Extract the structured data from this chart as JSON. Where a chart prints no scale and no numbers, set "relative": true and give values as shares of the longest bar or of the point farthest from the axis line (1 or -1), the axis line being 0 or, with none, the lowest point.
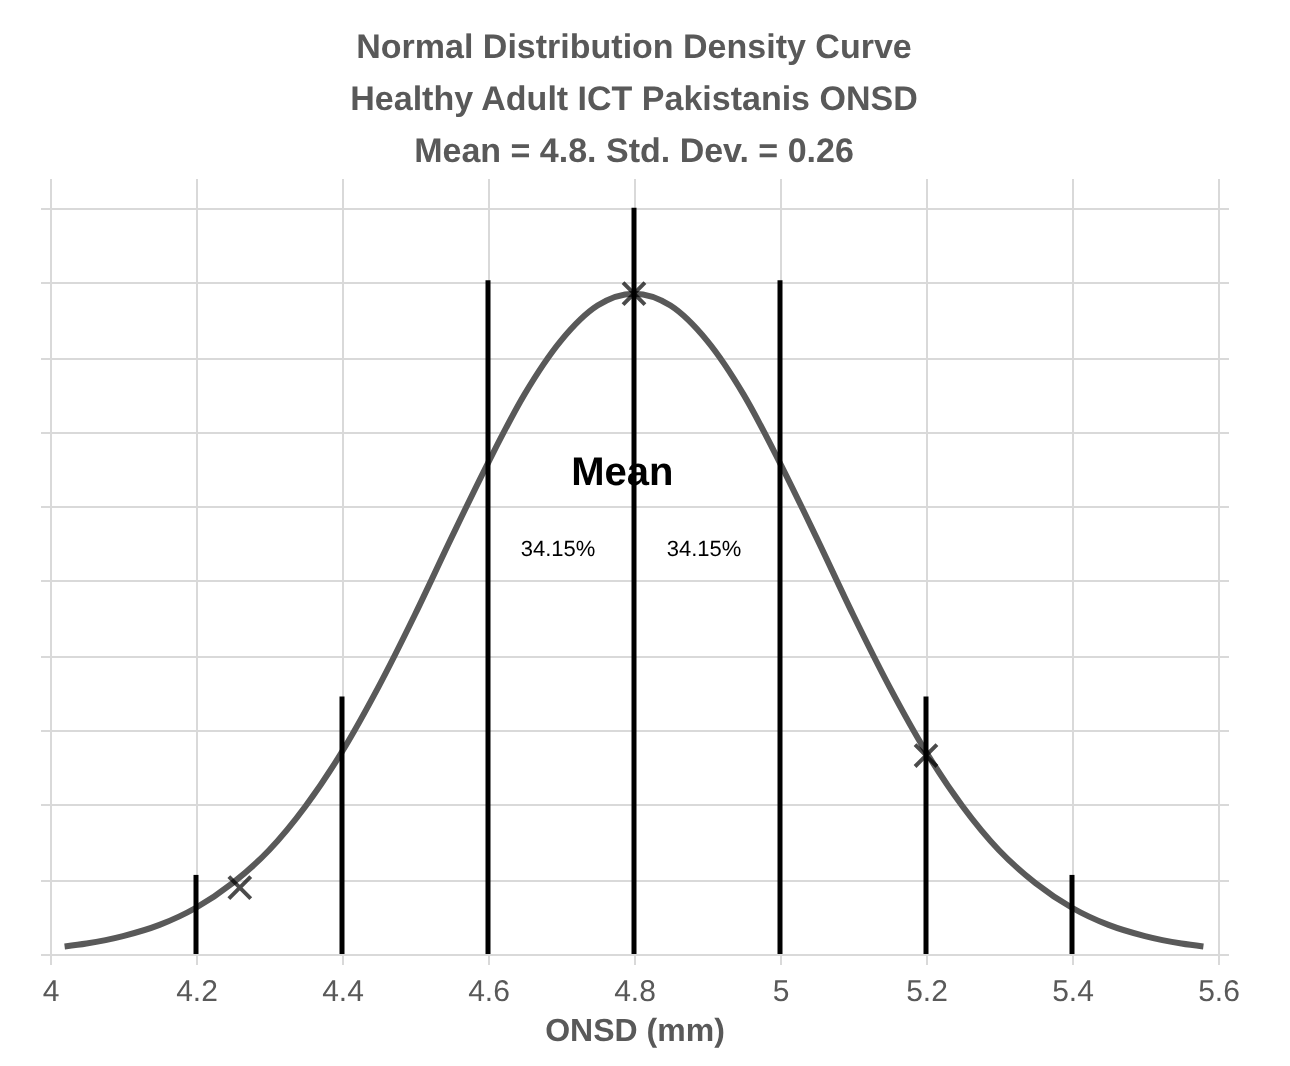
{
  "chart_data": {
    "type": "line",
    "title": "Normal Distribution Density Curve\nHealthy Adult ICT Pakistanis ONSD\nMean = 4.8. Std. Dev. = 0.26",
    "xlabel": "ONSD (mm)",
    "relative": true,
    "grid": true,
    "xlim": [
      4,
      5.6
    ],
    "xticks": [
      {
        "value": 4,
        "label": "4"
      },
      4.2,
      4.4,
      4.6,
      4.8,
      {
        "value": 5,
        "label": "5"
      },
      5.2,
      5.4,
      5.6
    ],
    "series": [
      {
        "color": "#595959",
        "x": [
          4.02,
          4.05,
          4.1,
          4.15,
          4.2,
          4.25,
          4.3,
          4.35,
          4.4,
          4.45,
          4.5,
          4.55,
          4.6,
          4.65,
          4.7,
          4.75,
          4.8,
          4.85,
          4.9,
          4.95,
          5.0,
          5.05,
          5.1,
          5.15,
          5.2,
          5.25,
          5.3,
          5.35,
          5.4,
          5.45,
          5.5,
          5.55,
          5.58
        ],
        "values": [
          0.01,
          0.014,
          0.024,
          0.039,
          0.062,
          0.095,
          0.139,
          0.198,
          0.271,
          0.358,
          0.455,
          0.558,
          0.658,
          0.75,
          0.822,
          0.869,
          0.885,
          0.869,
          0.822,
          0.75,
          0.658,
          0.558,
          0.455,
          0.358,
          0.271,
          0.198,
          0.139,
          0.095,
          0.062,
          0.039,
          0.024,
          0.014,
          0.01
        ]
      },
      {
        "type": "bar",
        "color": "#000000",
        "x": [
          4.2,
          4.4,
          4.6,
          4.8,
          5.0,
          5.2,
          5.4
        ],
        "values": [
          0.106,
          0.345,
          0.903,
          1,
          0.903,
          0.345,
          0.106
        ]
      },
      {
        "type": "scatter",
        "color": "#000000",
        "marker": "cross",
        "x": [
          4.26,
          4.8,
          5.2
        ],
        "values": [
          0.089,
          0.885,
          0.266
        ]
      }
    ],
    "annotations": [
      "Mean",
      "34.15%",
      "34.15%"
    ]
  }
}
